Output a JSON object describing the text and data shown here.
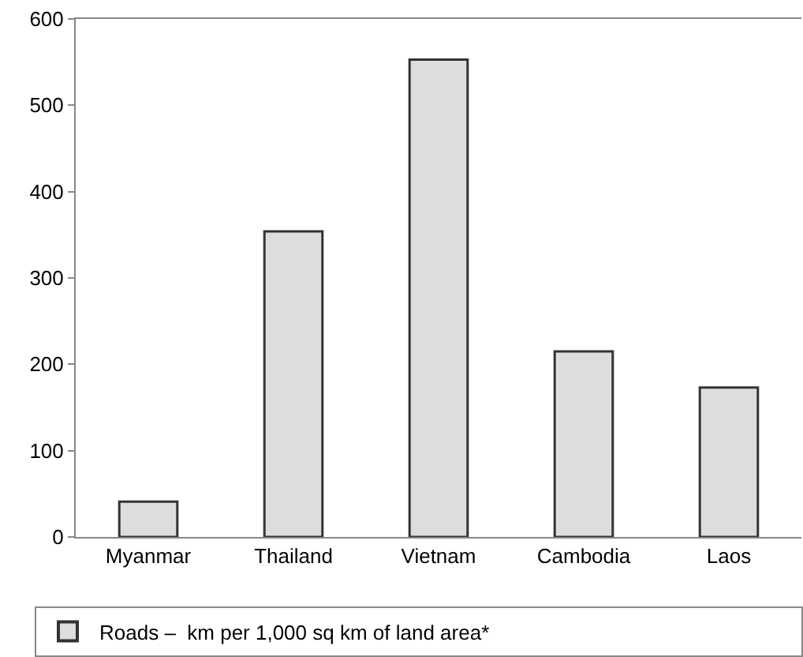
{
  "chart_data": {
    "type": "bar",
    "categories": [
      "Myanmar",
      "Thailand",
      "Vietnam",
      "Cambodia",
      "Laos"
    ],
    "series": [
      {
        "name": "Roads –  km per 1,000 sq km of land area*",
        "color": "#dddddd",
        "values": [
          41,
          354,
          553,
          215,
          173
        ]
      }
    ],
    "ylim": [
      0,
      600
    ],
    "yticks": [
      0,
      100,
      200,
      300,
      400,
      500,
      600
    ],
    "legend": "bottom"
  }
}
